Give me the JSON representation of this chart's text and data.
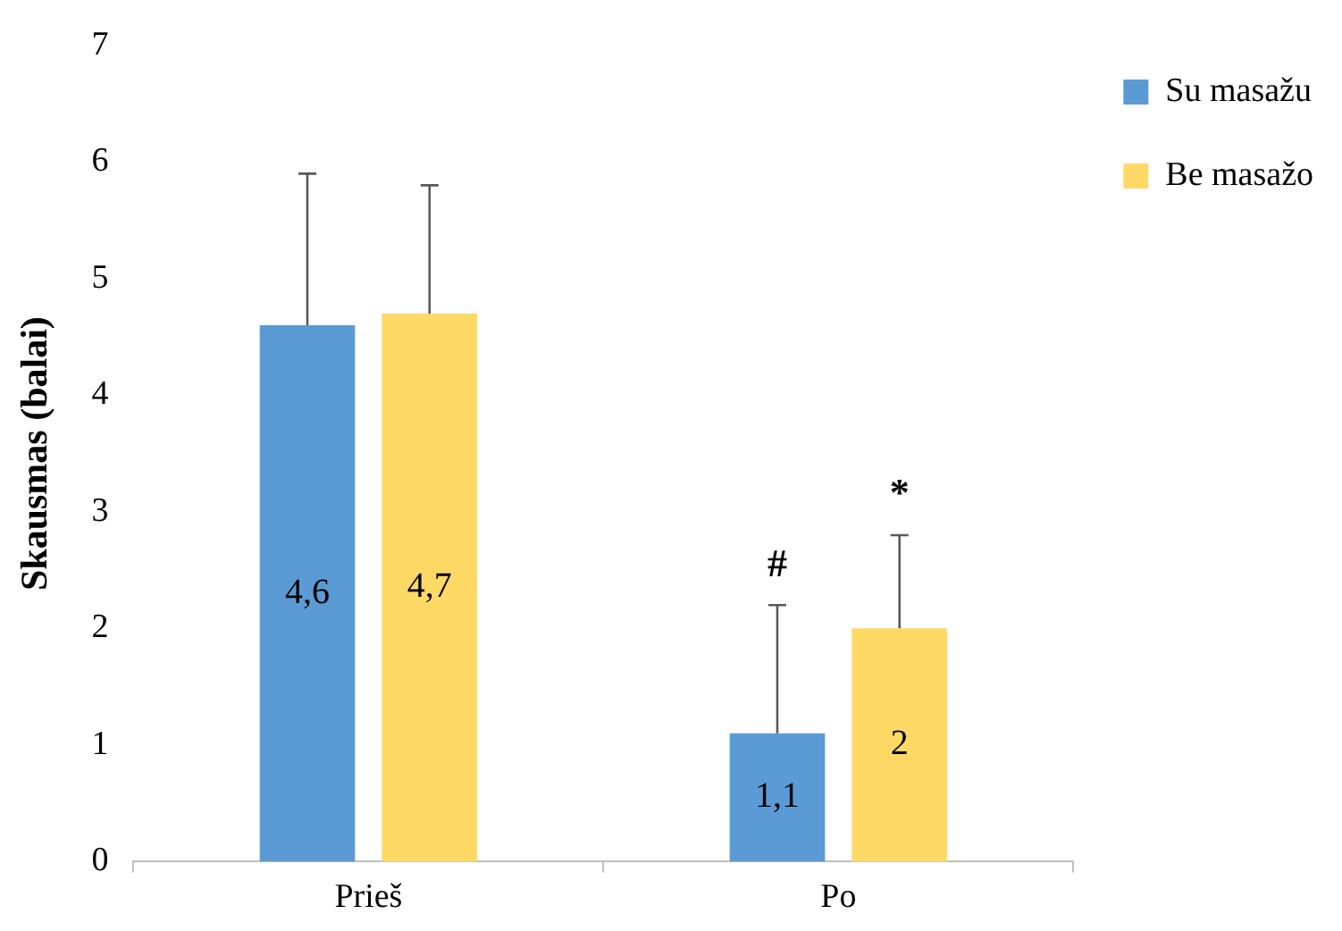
{
  "chart_data": {
    "type": "bar",
    "ylabel": "Skausmas (balai)",
    "categories": [
      "Prieš",
      "Po"
    ],
    "series": [
      {
        "name": "Su masažu",
        "color": "#5b9bd5",
        "values": [
          4.6,
          1.1
        ],
        "value_labels": [
          "4,6",
          "1,1"
        ],
        "errors": [
          [
            4.6,
            5.9
          ],
          [
            1.1,
            2.2
          ]
        ]
      },
      {
        "name": "Be masažo",
        "color": "#ffd966",
        "values": [
          4.7,
          2
        ],
        "value_labels": [
          "4,7",
          "2"
        ],
        "errors": [
          [
            4.7,
            5.8
          ],
          [
            2,
            2.8
          ]
        ]
      }
    ],
    "ylim": [
      0,
      7
    ],
    "yticks": [
      0,
      1,
      2,
      3,
      4,
      5,
      6,
      7
    ],
    "grid": false,
    "legend": "right",
    "annotations": [
      "#",
      "*"
    ]
  }
}
